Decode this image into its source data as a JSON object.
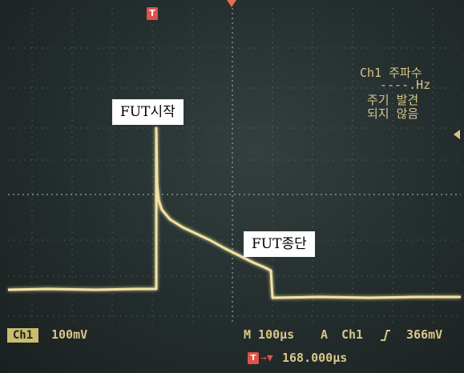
{
  "labels": {
    "start": "FUT시작",
    "stop": "FUT종단"
  },
  "osd": {
    "freq_title": "Ch1 주파수",
    "freq_value": "----.Hz",
    "freq_status_1": "주기 발견",
    "freq_status_2": "되지 않음",
    "ch1_badge": "Ch1",
    "ch1_scale": "100mV",
    "timebase": "M 100µs",
    "trigger_mode": "A",
    "trigger_source": "Ch1",
    "trigger_edge_icon": "rising-edge-icon",
    "trigger_level": "366mV",
    "trigger_marker": "T",
    "trigger_offset_arrow": "→▼",
    "trigger_position": "168.000µs"
  },
  "colors": {
    "trace": "#f2e2a6",
    "osd_text": "#d9c58a",
    "graticule": "#8a9a98",
    "marker": "#e0524a"
  }
}
